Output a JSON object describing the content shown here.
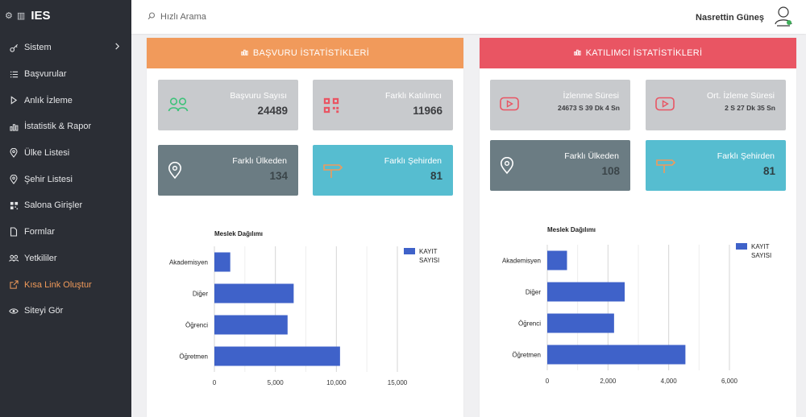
{
  "app": {
    "title": "IES"
  },
  "sidebar": {
    "items": [
      {
        "label": "Sistem",
        "icon": "key-icon",
        "has_children": true
      },
      {
        "label": "Başvurular",
        "icon": "list-icon"
      },
      {
        "label": "Anlık İzleme",
        "icon": "play-icon"
      },
      {
        "label": "İstatistik & Rapor",
        "icon": "bar-chart-icon"
      },
      {
        "label": "Ülke Listesi",
        "icon": "map-pin-icon"
      },
      {
        "label": "Şehir Listesi",
        "icon": "map-pin-icon"
      },
      {
        "label": "Salona Girişler",
        "icon": "qr-code-icon"
      },
      {
        "label": "Formlar",
        "icon": "file-icon"
      },
      {
        "label": "Yetkililer",
        "icon": "users-icon"
      },
      {
        "label": "Kısa Link Oluştur",
        "icon": "external-link-icon",
        "active": true
      },
      {
        "label": "Siteyi Gör",
        "icon": "eye-icon"
      }
    ]
  },
  "header": {
    "search_placeholder": "Hızlı Arama",
    "user_name": "Nasrettin Güneş"
  },
  "colors": {
    "accent": "#f09a5a",
    "orange": "#f19a5b",
    "red": "#e95563",
    "gray": "#c8cacd",
    "slate": "#6b7c83",
    "teal": "#56bdd0",
    "bar": "#3f62c9"
  },
  "left_panel": {
    "title": "BAŞVURU İSTATİSTİKLERİ",
    "cards": [
      {
        "label": "Başvuru Sayısı",
        "value": "24489",
        "icon": "users-icon"
      },
      {
        "label": "Farklı Katılımcı",
        "value": "11966",
        "icon": "qr-code-icon"
      },
      {
        "label": "Farklı Ülkeden",
        "value": "134",
        "icon": "map-pin-icon"
      },
      {
        "label": "Farklı Şehirden",
        "value": "81",
        "icon": "signpost-icon"
      }
    ]
  },
  "right_panel": {
    "title": "KATILIMCI İSTATİSTİKLERİ",
    "cards": [
      {
        "label": "İzlenme Süresi",
        "value": "24673 S 39 Dk 4 Sn",
        "icon": "youtube-icon"
      },
      {
        "label": "Ort. İzleme Süresi",
        "value": "2 S 27 Dk 35 Sn",
        "icon": "youtube-icon"
      },
      {
        "label": "Farklı Ülkeden",
        "value": "108",
        "icon": "map-pin-icon"
      },
      {
        "label": "Farklı Şehirden",
        "value": "81",
        "icon": "signpost-icon"
      }
    ]
  },
  "chart_data": [
    {
      "type": "bar",
      "orientation": "horizontal",
      "title": "Meslek Dağılımı",
      "categories": [
        "Akademisyen",
        "Diğer",
        "Öğrenci",
        "Öğretmen"
      ],
      "series": [
        {
          "name": "KAYIT SAYISI",
          "values": [
            1300,
            6500,
            6000,
            10300
          ]
        }
      ],
      "xlim": [
        0,
        15000
      ],
      "xticks": [
        "0",
        "5,000",
        "10,000",
        "15,000"
      ],
      "grid": true,
      "legend": "top-right"
    },
    {
      "type": "bar",
      "orientation": "horizontal",
      "title": "Meslek Dağılımı",
      "categories": [
        "Akademisyen",
        "Diğer",
        "Öğrenci",
        "Öğretmen"
      ],
      "series": [
        {
          "name": "KAYIT SAYISI",
          "values": [
            650,
            2550,
            2200,
            4550
          ]
        }
      ],
      "xlim": [
        0,
        6000
      ],
      "xticks": [
        "0",
        "2,000",
        "4,000",
        "6,000"
      ],
      "grid": true,
      "legend": "top-right"
    }
  ]
}
